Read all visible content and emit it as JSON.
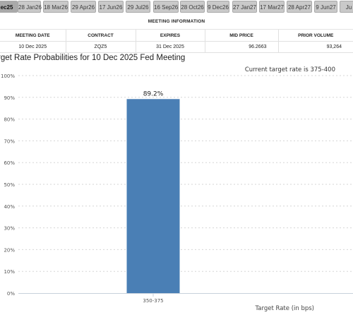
{
  "tabs": [
    "ec25",
    "28 Jan26",
    "18 Mar26",
    "29 Apr26",
    "17 Jun26",
    "29 Jul26",
    "16 Sep26",
    "28 Oct26",
    "9 Dec26",
    "27 Jan27",
    "17 Mar27",
    "28 Apr27",
    "9 Jun27",
    "Ju"
  ],
  "meeting_info": {
    "title": "MEETING INFORMATION",
    "headers": [
      "MEETING DATE",
      "CONTRACT",
      "EXPIRES",
      "MID PRICE",
      "PRIOR VOLUME"
    ],
    "row": [
      "10 Dec 2025",
      "ZQZ5",
      "31 Dec 2025",
      "96.2663",
      "93,264"
    ]
  },
  "chart_data": {
    "type": "bar",
    "title": "rget Rate Probabilities for 10 Dec 2025 Fed Meeting",
    "subtitle": "Current target rate is 375-400",
    "categories": [
      "350-375"
    ],
    "values": [
      89.2
    ],
    "data_labels": [
      "89.2%"
    ],
    "xlabel": "Target Rate (in bps)",
    "ylim": [
      0,
      100
    ],
    "yticks": [
      "0%",
      "10%",
      "20%",
      "30%",
      "40%",
      "50%",
      "60%",
      "70%",
      "80%",
      "90%",
      "100%"
    ],
    "grid": true,
    "bar_color": "#4a7fb5"
  }
}
